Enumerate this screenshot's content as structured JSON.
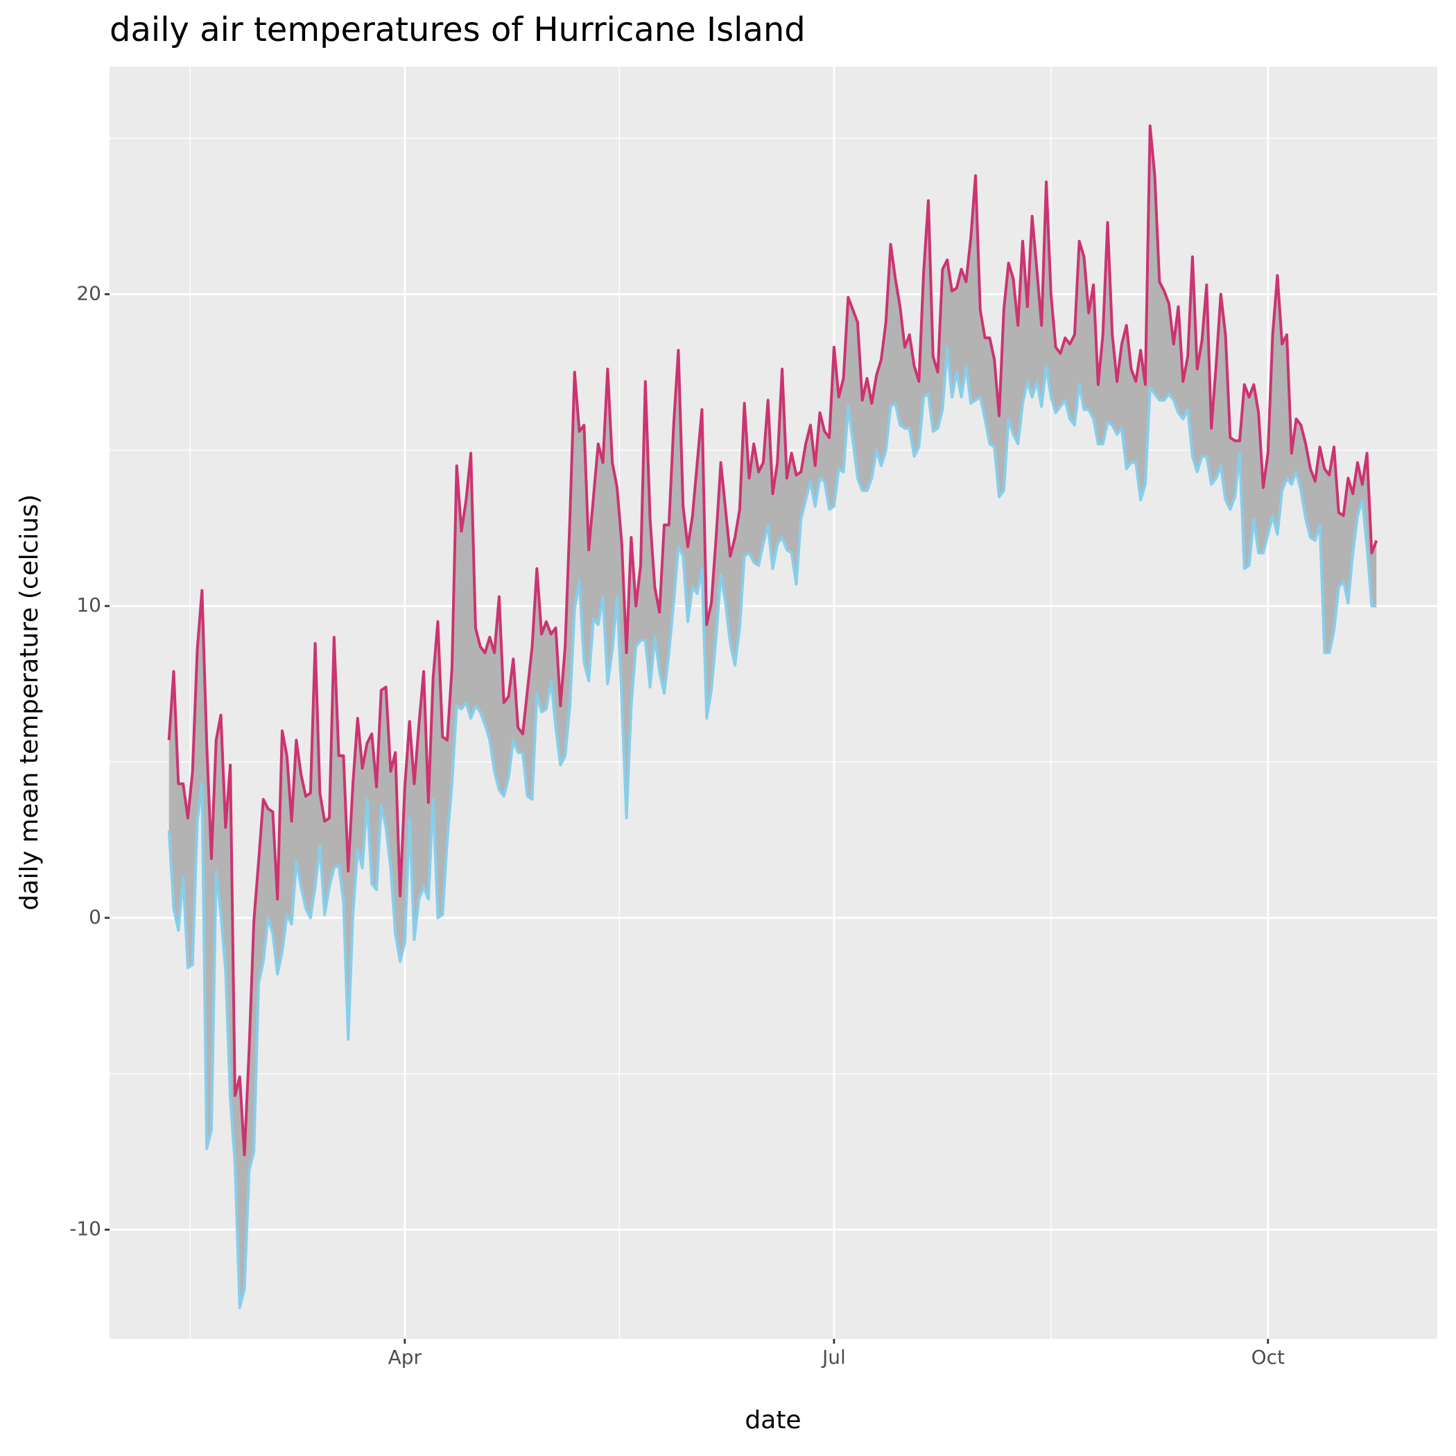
{
  "chart_data": {
    "type": "ribbon",
    "title": "daily air temperatures of Hurricane Island",
    "x_label": "date",
    "y_label": "daily mean temperature (celcius)",
    "x": [
      41,
      42,
      43,
      44,
      45,
      46,
      47,
      48,
      49,
      50,
      51,
      52,
      53,
      54,
      55,
      56,
      57,
      58,
      59,
      60,
      61,
      62,
      63,
      64,
      65,
      66,
      67,
      68,
      69,
      70,
      71,
      72,
      73,
      74,
      75,
      76,
      77,
      78,
      79,
      80,
      81,
      82,
      83,
      84,
      85,
      86,
      87,
      88,
      89,
      90,
      91,
      92,
      93,
      94,
      95,
      96,
      97,
      98,
      99,
      100,
      101,
      102,
      103,
      104,
      105,
      106,
      107,
      108,
      109,
      110,
      111,
      112,
      113,
      114,
      115,
      116,
      117,
      118,
      119,
      120,
      121,
      122,
      123,
      124,
      125,
      126,
      127,
      128,
      129,
      130,
      131,
      132,
      133,
      134,
      135,
      136,
      137,
      138,
      139,
      140,
      141,
      142,
      143,
      144,
      145,
      146,
      147,
      148,
      149,
      150,
      151,
      152,
      153,
      154,
      155,
      156,
      157,
      158,
      159,
      160,
      161,
      162,
      163,
      164,
      165,
      166,
      167,
      168,
      169,
      170,
      171,
      172,
      173,
      174,
      175,
      176,
      177,
      178,
      179,
      180,
      181,
      182,
      183,
      184,
      185,
      186,
      187,
      188,
      189,
      190,
      191,
      192,
      193,
      194,
      195,
      196,
      197,
      198,
      199,
      200,
      201,
      202,
      203,
      204,
      205,
      206,
      207,
      208,
      209,
      210,
      211,
      212,
      213,
      214,
      215,
      216,
      217,
      218,
      219,
      220,
      221,
      222,
      223,
      224,
      225,
      226,
      227,
      228,
      229,
      230,
      231,
      232,
      233,
      234,
      235,
      236,
      237,
      238,
      239,
      240,
      241,
      242,
      243,
      244,
      245,
      246,
      247,
      248,
      249,
      250,
      251,
      252,
      253,
      254,
      255,
      256,
      257,
      258,
      259,
      260,
      261,
      262,
      263,
      264,
      265,
      266,
      267,
      268,
      269,
      270,
      271,
      272,
      273,
      274,
      275,
      276,
      277,
      278,
      279,
      280,
      281,
      282,
      283,
      284,
      285,
      286,
      287,
      288,
      289,
      290,
      291,
      292,
      293,
      294,
      295,
      296,
      297
    ],
    "series": [
      {
        "color": "#cc3371",
        "values": [
          5.7,
          7.9,
          4.3,
          4.3,
          3.2,
          4.7,
          8.6,
          10.5,
          5.6,
          1.9,
          5.7,
          6.5,
          2.9,
          4.9,
          -5.7,
          -5.1,
          -7.6,
          -4.2,
          -0.1,
          1.8,
          3.8,
          3.5,
          3.4,
          0.6,
          6.0,
          5.2,
          3.1,
          5.7,
          4.6,
          3.9,
          4.0,
          8.8,
          4.0,
          3.1,
          3.2,
          9.0,
          5.2,
          5.2,
          1.5,
          4.3,
          6.4,
          4.8,
          5.6,
          5.9,
          4.2,
          7.3,
          7.4,
          4.7,
          5.3,
          0.7,
          4.2,
          6.3,
          4.3,
          6.2,
          7.9,
          3.7,
          7.7,
          9.5,
          5.8,
          5.7,
          8.0,
          14.5,
          12.4,
          13.4,
          14.9,
          9.3,
          8.7,
          8.5,
          9.0,
          8.5,
          10.3,
          6.9,
          7.1,
          8.3,
          6.1,
          5.9,
          7.3,
          8.7,
          11.2,
          9.1,
          9.5,
          9.1,
          9.3,
          6.8,
          8.7,
          12.8,
          17.5,
          15.6,
          15.8,
          11.8,
          13.5,
          15.2,
          14.6,
          17.6,
          14.6,
          13.8,
          12.0,
          8.5,
          12.2,
          10.0,
          11.3,
          17.2,
          12.8,
          10.6,
          9.8,
          12.6,
          12.6,
          15.8,
          18.2,
          13.2,
          11.9,
          12.9,
          14.6,
          16.3,
          9.4,
          10.1,
          12.2,
          14.6,
          13.1,
          11.6,
          12.2,
          13.1,
          16.5,
          14.1,
          15.2,
          14.3,
          14.6,
          16.6,
          13.6,
          14.6,
          17.6,
          14.1,
          14.9,
          14.2,
          14.3,
          15.2,
          15.8,
          14.5,
          16.2,
          15.6,
          15.4,
          18.3,
          16.7,
          17.3,
          19.9,
          19.5,
          19.1,
          16.6,
          17.3,
          16.5,
          17.4,
          17.9,
          19.1,
          21.6,
          20.5,
          19.6,
          18.3,
          18.7,
          17.7,
          17.2,
          20.7,
          23.0,
          18.0,
          17.5,
          20.8,
          21.1,
          20.1,
          20.2,
          20.8,
          20.4,
          21.8,
          23.8,
          19.5,
          18.6,
          18.6,
          17.9,
          16.1,
          19.5,
          21.0,
          20.5,
          19.0,
          21.7,
          19.6,
          22.5,
          20.8,
          19.0,
          23.6,
          20.0,
          18.3,
          18.1,
          18.6,
          18.4,
          18.7,
          21.7,
          21.2,
          19.4,
          20.3,
          17.1,
          18.7,
          22.3,
          18.7,
          17.2,
          18.4,
          19.0,
          17.6,
          17.2,
          18.2,
          17.1,
          25.4,
          23.8,
          20.4,
          20.1,
          19.7,
          18.4,
          19.6,
          17.2,
          18.0,
          21.2,
          17.6,
          18.5,
          20.3,
          15.7,
          17.7,
          20.0,
          18.7,
          15.4,
          15.3,
          15.3,
          17.1,
          16.7,
          17.1,
          16.2,
          13.8,
          14.9,
          18.7,
          20.6,
          18.4,
          18.7,
          14.9,
          16.0,
          15.8,
          15.2,
          14.4,
          14.0,
          15.1,
          14.4,
          14.2,
          15.1,
          13.0,
          12.9,
          14.1,
          13.6,
          14.6,
          13.9,
          14.9,
          11.7,
          12.1
        ]
      },
      {
        "color": "#87ceeb",
        "values": [
          2.8,
          0.3,
          -0.4,
          1.3,
          -1.6,
          -1.5,
          3.1,
          4.3,
          -7.4,
          -6.8,
          1.5,
          0.1,
          -1.7,
          -5.8,
          -7.9,
          -12.5,
          -11.9,
          -8.1,
          -7.5,
          -2.1,
          -1.4,
          0.0,
          -0.5,
          -1.8,
          -1.1,
          0.1,
          -0.2,
          1.8,
          1.0,
          0.3,
          0.0,
          1.0,
          2.3,
          0.1,
          1.0,
          1.6,
          1.7,
          0.5,
          -3.9,
          0.1,
          2.2,
          1.6,
          3.8,
          1.1,
          0.9,
          3.6,
          2.9,
          1.6,
          -0.5,
          -1.4,
          -0.8,
          3.2,
          -0.7,
          0.6,
          1.0,
          0.6,
          3.8,
          0.0,
          0.1,
          2.5,
          4.3,
          6.8,
          6.7,
          6.9,
          6.4,
          6.8,
          6.6,
          6.2,
          5.7,
          4.7,
          4.1,
          3.9,
          4.5,
          5.7,
          5.3,
          5.3,
          3.9,
          3.8,
          7.2,
          6.6,
          6.7,
          7.6,
          6.1,
          4.9,
          5.2,
          6.8,
          9.9,
          10.8,
          8.2,
          7.6,
          9.6,
          9.4,
          10.3,
          7.5,
          8.6,
          10.3,
          7.0,
          3.2,
          6.8,
          8.7,
          8.9,
          8.9,
          7.4,
          9.0,
          7.9,
          7.2,
          8.5,
          10.1,
          11.9,
          11.6,
          9.5,
          10.6,
          10.4,
          11.2,
          6.4,
          7.3,
          9.0,
          11.0,
          10.1,
          8.8,
          8.1,
          9.3,
          11.6,
          11.7,
          11.4,
          11.3,
          12.0,
          12.6,
          11.2,
          12.0,
          12.2,
          11.8,
          11.7,
          10.7,
          12.8,
          13.4,
          14.0,
          13.2,
          14.1,
          14.0,
          13.1,
          13.2,
          14.4,
          14.3,
          16.4,
          15.3,
          14.1,
          13.7,
          13.7,
          14.1,
          15.0,
          14.5,
          15.0,
          16.4,
          16.5,
          15.8,
          15.7,
          15.7,
          14.8,
          15.1,
          16.7,
          16.8,
          15.6,
          15.7,
          16.3,
          18.3,
          16.7,
          17.5,
          16.7,
          17.7,
          16.5,
          16.6,
          16.7,
          16.0,
          15.2,
          15.1,
          13.5,
          13.7,
          16.0,
          15.5,
          15.2,
          16.5,
          17.2,
          16.7,
          17.2,
          16.4,
          17.7,
          16.7,
          16.2,
          16.4,
          16.6,
          16.0,
          15.8,
          17.1,
          16.3,
          16.3,
          16.0,
          15.2,
          15.2,
          15.9,
          15.8,
          15.5,
          15.7,
          14.4,
          14.6,
          14.6,
          13.4,
          13.9,
          17.0,
          16.8,
          16.6,
          16.6,
          16.8,
          16.6,
          16.2,
          16.0,
          16.3,
          14.8,
          14.3,
          14.8,
          14.8,
          13.9,
          14.1,
          14.5,
          13.4,
          13.1,
          13.5,
          14.9,
          11.2,
          11.3,
          12.8,
          11.7,
          11.7,
          12.3,
          12.9,
          12.3,
          13.7,
          14.1,
          13.9,
          14.3,
          13.7,
          12.8,
          12.2,
          12.1,
          12.6,
          8.5,
          8.5,
          9.2,
          10.6,
          10.8,
          10.1,
          11.7,
          12.9,
          13.4,
          11.9,
          10.0,
          10.0
        ]
      }
    ],
    "ribbon_color": "#b3b3b3",
    "xlim": [
      28.4,
      309.9
    ],
    "xticks": [
      {
        "value": 91,
        "label": "Apr"
      },
      {
        "value": 182,
        "label": "Jul"
      },
      {
        "value": 274,
        "label": "Oct"
      }
    ],
    "xminorticks": [
      45.5,
      136.5,
      228
    ],
    "ylim": [
      -13.5,
      27.3
    ],
    "yticks": [
      -10,
      0,
      10,
      20
    ],
    "yminorticks": [
      -5,
      5,
      15,
      25
    ],
    "grid": true
  }
}
